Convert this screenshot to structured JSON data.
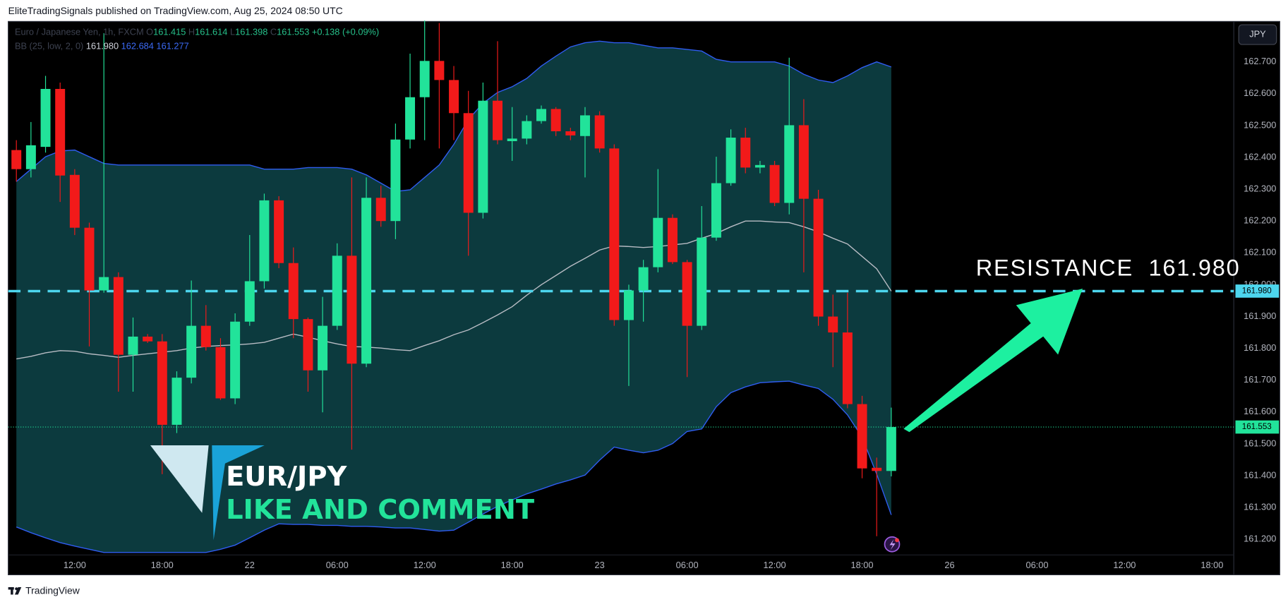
{
  "header": {
    "text": "EliteTradingSignals published on TradingView.com, Aug 25, 2024 08:50 UTC"
  },
  "currency_button": "JPY",
  "legend": {
    "symbol": "Euro / Japanese Yen, 1h, FXCM",
    "o": "O",
    "open": "161.415",
    "h": "H",
    "high": "161.614",
    "l": "L",
    "low": "161.398",
    "c": "C",
    "close": "161.553",
    "change": "+0.138 (+0.09%)",
    "bb_title": "BB (25, low, 2, 0)",
    "bb_basis": "161.980",
    "bb_upper": "162.684",
    "bb_lower": "161.277"
  },
  "overlay": {
    "pair": "EUR/JPY",
    "call": "LIKE AND COMMENT"
  },
  "footer": {
    "brand": "TradingView"
  },
  "chart_data": {
    "type": "candlestick",
    "up_color": "#22e39a",
    "down_color": "#f21a1a",
    "xlim": [
      -4.56,
      79.49
    ],
    "ylim": [
      161.151,
      162.827
    ],
    "grid": false,
    "xticks": [
      {
        "value": 0,
        "label": "12:00"
      },
      {
        "value": 6,
        "label": "18:00"
      },
      {
        "value": 12,
        "label": "22"
      },
      {
        "value": 18,
        "label": "06:00"
      },
      {
        "value": 24,
        "label": "12:00"
      },
      {
        "value": 30,
        "label": "18:00"
      },
      {
        "value": 36,
        "label": "23"
      },
      {
        "value": 42,
        "label": "06:00"
      },
      {
        "value": 48,
        "label": "12:00"
      },
      {
        "value": 54,
        "label": "18:00"
      },
      {
        "value": 60,
        "label": "26"
      },
      {
        "value": 66,
        "label": "06:00"
      },
      {
        "value": 72,
        "label": "12:00"
      },
      {
        "value": 78,
        "label": "18:00"
      }
    ],
    "yticks": [
      {
        "value": 161.2,
        "label": "161.200"
      },
      {
        "value": 161.3,
        "label": "161.300"
      },
      {
        "value": 161.4,
        "label": "161.400"
      },
      {
        "value": 161.5,
        "label": "161.500"
      },
      {
        "value": 161.6,
        "label": "161.600"
      },
      {
        "value": 161.7,
        "label": "161.700"
      },
      {
        "value": 161.8,
        "label": "161.800"
      },
      {
        "value": 161.9,
        "label": "161.900"
      },
      {
        "value": 162.0,
        "label": "162.000"
      },
      {
        "value": 162.1,
        "label": "162.100"
      },
      {
        "value": 162.2,
        "label": "162.200"
      },
      {
        "value": 162.3,
        "label": "162.300"
      },
      {
        "value": 162.4,
        "label": "162.400"
      },
      {
        "value": 162.5,
        "label": "162.500"
      },
      {
        "value": 162.6,
        "label": "162.600"
      },
      {
        "value": 162.7,
        "label": "162.700"
      }
    ],
    "candles": {
      "x": [
        -4,
        -3,
        -2,
        -1,
        0,
        1,
        2,
        3,
        4,
        5,
        6,
        7,
        8,
        9,
        10,
        11,
        12,
        13,
        14,
        15,
        16,
        17,
        18,
        19,
        20,
        21,
        22,
        23,
        24,
        25,
        26,
        27,
        28,
        29,
        30,
        31,
        32,
        33,
        34,
        35,
        36,
        37,
        38,
        39,
        40,
        41,
        42,
        43,
        44,
        45,
        46,
        47,
        48,
        49,
        50,
        51,
        52,
        53,
        54,
        55,
        56
      ],
      "open": [
        162.423,
        162.363,
        162.433,
        162.615,
        162.345,
        162.179,
        161.982,
        162.024,
        161.78,
        161.837,
        161.822,
        161.56,
        161.708,
        161.871,
        161.804,
        161.643,
        161.884,
        162.011,
        162.265,
        162.068,
        161.892,
        161.731,
        161.871,
        162.091,
        161.752,
        162.273,
        162.2,
        162.456,
        162.589,
        162.703,
        162.643,
        162.539,
        162.226,
        162.578,
        162.451,
        162.459,
        162.514,
        162.552,
        162.482,
        162.467,
        162.532,
        162.428,
        161.889,
        161.982,
        162.055,
        162.21,
        162.071,
        161.871,
        162.148,
        162.319,
        162.462,
        162.368,
        162.376,
        162.257,
        162.501,
        162.27,
        161.9,
        161.85,
        161.625,
        161.425,
        161.415
      ],
      "high": [
        162.454,
        162.511,
        162.656,
        162.635,
        162.363,
        162.195,
        162.79,
        162.039,
        161.897,
        161.845,
        161.845,
        161.728,
        162.013,
        161.936,
        161.832,
        161.91,
        162.156,
        162.286,
        162.278,
        162.117,
        161.897,
        161.962,
        162.13,
        162.337,
        162.337,
        162.311,
        162.506,
        162.726,
        162.83,
        162.822,
        162.687,
        162.609,
        162.635,
        162.765,
        162.558,
        162.532,
        162.563,
        162.558,
        162.493,
        162.558,
        162.545,
        162.441,
        162.0,
        162.078,
        162.363,
        162.221,
        162.078,
        162.247,
        162.402,
        162.488,
        162.493,
        162.389,
        162.389,
        162.713,
        162.583,
        162.298,
        161.969,
        161.975,
        161.651,
        161.457,
        161.614
      ],
      "low": [
        162.324,
        162.337,
        162.415,
        162.26,
        162.156,
        161.806,
        161.975,
        161.664,
        161.664,
        161.817,
        161.405,
        161.534,
        161.69,
        161.793,
        161.638,
        161.625,
        161.871,
        161.988,
        162.052,
        161.832,
        161.664,
        161.599,
        161.858,
        161.482,
        161.741,
        162.182,
        162.143,
        162.428,
        162.454,
        162.428,
        162.454,
        162.091,
        162.208,
        162.441,
        162.389,
        162.441,
        162.506,
        162.467,
        162.454,
        162.337,
        162.415,
        161.871,
        161.682,
        161.884,
        162.039,
        162.065,
        161.71,
        161.858,
        162.138,
        162.311,
        162.35,
        162.35,
        162.247,
        162.221,
        162.039,
        161.871,
        161.741,
        161.612,
        161.392,
        161.21,
        161.398
      ],
      "close": [
        162.363,
        162.438,
        162.615,
        162.343,
        162.179,
        161.982,
        162.024,
        161.78,
        161.837,
        161.822,
        161.56,
        161.708,
        161.871,
        161.804,
        161.643,
        161.884,
        162.011,
        162.265,
        162.068,
        161.892,
        161.731,
        161.871,
        162.091,
        161.752,
        162.273,
        162.2,
        162.456,
        162.589,
        162.703,
        162.643,
        162.539,
        162.226,
        162.578,
        162.454,
        162.459,
        162.514,
        162.552,
        162.482,
        162.469,
        162.532,
        162.428,
        161.889,
        161.982,
        162.055,
        162.21,
        162.071,
        161.871,
        162.148,
        162.319,
        162.462,
        162.368,
        162.376,
        162.257,
        162.501,
        162.27,
        161.9,
        161.85,
        161.625,
        161.423,
        161.415,
        161.553
      ]
    },
    "bollinger": {
      "fill_color": "#0c3a3e",
      "band_color": "#2f5cf0",
      "basis_color": "#b8bcc4",
      "upper": [
        162.324,
        162.363,
        162.402,
        162.42,
        162.423,
        162.402,
        162.381,
        162.376,
        162.376,
        162.376,
        162.376,
        162.376,
        162.376,
        162.376,
        162.376,
        162.376,
        162.376,
        162.363,
        162.363,
        162.363,
        162.368,
        162.368,
        162.368,
        162.363,
        162.345,
        162.319,
        162.293,
        162.298,
        162.337,
        162.376,
        162.441,
        162.519,
        162.57,
        162.604,
        162.622,
        162.648,
        162.687,
        162.718,
        162.747,
        162.76,
        162.765,
        162.76,
        162.76,
        162.752,
        162.744,
        162.744,
        162.739,
        162.734,
        162.708,
        162.7,
        162.7,
        162.7,
        162.7,
        162.687,
        162.661,
        162.643,
        162.635,
        162.656,
        162.682,
        162.7,
        162.684
      ],
      "basis": [
        161.767,
        161.775,
        161.786,
        161.793,
        161.791,
        161.783,
        161.778,
        161.772,
        161.778,
        161.783,
        161.788,
        161.793,
        161.801,
        161.806,
        161.809,
        161.811,
        161.814,
        161.819,
        161.832,
        161.845,
        161.835,
        161.824,
        161.814,
        161.806,
        161.804,
        161.801,
        161.796,
        161.793,
        161.809,
        161.824,
        161.843,
        161.858,
        161.881,
        161.905,
        161.931,
        161.967,
        162.0,
        162.029,
        162.058,
        162.083,
        162.109,
        162.122,
        162.12,
        162.117,
        162.12,
        162.125,
        162.13,
        162.146,
        162.161,
        162.182,
        162.2,
        162.2,
        162.197,
        162.195,
        162.182,
        162.166,
        162.146,
        162.128,
        162.089,
        162.05,
        161.98
      ],
      "lower": [
        161.239,
        161.221,
        161.205,
        161.19,
        161.179,
        161.169,
        161.159,
        161.159,
        161.159,
        161.159,
        161.159,
        161.159,
        161.159,
        161.159,
        161.169,
        161.182,
        161.205,
        161.229,
        161.249,
        161.247,
        161.247,
        161.244,
        161.244,
        161.241,
        161.241,
        161.239,
        161.236,
        161.236,
        161.231,
        161.226,
        161.229,
        161.254,
        161.28,
        161.304,
        161.324,
        161.343,
        161.358,
        161.374,
        161.387,
        161.402,
        161.449,
        161.49,
        161.48,
        161.472,
        161.48,
        161.501,
        161.539,
        161.547,
        161.617,
        161.661,
        161.679,
        161.692,
        161.695,
        161.697,
        161.685,
        161.674,
        161.64,
        161.591,
        161.521,
        161.405,
        161.277
      ]
    },
    "resistance": {
      "value": 161.98,
      "label": "161.980",
      "text": "RESISTANCE  161.980",
      "color": "#4dd6ee"
    },
    "last_price": {
      "value": 161.553,
      "label": "161.553",
      "color": "#22e39a"
    }
  }
}
